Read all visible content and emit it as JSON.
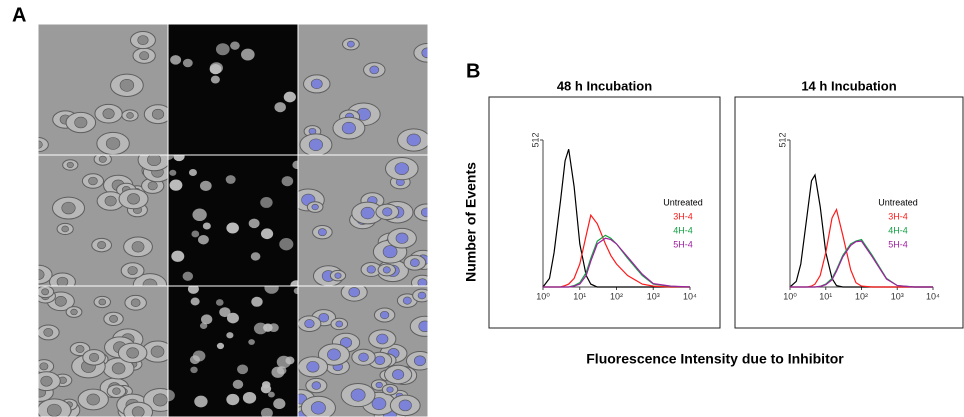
{
  "figure": {
    "panel_a": "A",
    "panel_b": "B",
    "y_label": "Number of Events",
    "x_label": "Fluorescence Intensity due to Inhibitor"
  },
  "chart_data": [
    {
      "type": "line",
      "title": "48 h Incubation",
      "log_x": true,
      "x": [
        1,
        1.5,
        2,
        3,
        4,
        5,
        7,
        10,
        15,
        20,
        30,
        50,
        70,
        100,
        200,
        500,
        1000,
        3000,
        10000
      ],
      "xlim": [
        1,
        10000
      ],
      "xticks": [
        {
          "value": 1,
          "label": "10⁰"
        },
        {
          "value": 10,
          "label": "10¹"
        },
        {
          "value": 100,
          "label": "10²"
        },
        {
          "value": 1000,
          "label": "10³"
        },
        {
          "value": 10000,
          "label": "10⁴"
        }
      ],
      "ylim": [
        0,
        512
      ],
      "yticks": [
        512
      ],
      "series": [
        {
          "name": "Untreated",
          "color": "#000000",
          "values": [
            0,
            30,
            120,
            300,
            440,
            480,
            350,
            150,
            40,
            10,
            0,
            0,
            0,
            0,
            0,
            0,
            0,
            0,
            0
          ]
        },
        {
          "name": "3H-4",
          "color": "#ff1a1a",
          "values": [
            0,
            0,
            0,
            0,
            5,
            10,
            30,
            80,
            180,
            250,
            220,
            150,
            110,
            80,
            40,
            10,
            3,
            0,
            0
          ]
        },
        {
          "name": "4H-4",
          "color": "#10a040",
          "values": [
            0,
            0,
            0,
            0,
            0,
            0,
            5,
            15,
            50,
            100,
            160,
            180,
            170,
            150,
            100,
            40,
            10,
            2,
            0
          ]
        },
        {
          "name": "5H-4",
          "color": "#a020a0",
          "values": [
            0,
            0,
            0,
            0,
            0,
            0,
            3,
            10,
            40,
            90,
            150,
            170,
            165,
            150,
            105,
            45,
            12,
            3,
            0
          ]
        }
      ]
    },
    {
      "type": "line",
      "title": "14 h Incubation",
      "log_x": true,
      "x": [
        1,
        1.5,
        2,
        3,
        4,
        5,
        7,
        10,
        15,
        20,
        30,
        50,
        70,
        100,
        200,
        500,
        1000,
        3000,
        10000
      ],
      "xlim": [
        1,
        10000
      ],
      "xticks": [
        {
          "value": 1,
          "label": "10⁰"
        },
        {
          "value": 10,
          "label": "10¹"
        },
        {
          "value": 100,
          "label": "10²"
        },
        {
          "value": 1000,
          "label": "10³"
        },
        {
          "value": 10000,
          "label": "10⁴"
        }
      ],
      "ylim": [
        0,
        512
      ],
      "yticks": [
        512
      ],
      "series": [
        {
          "name": "Untreated",
          "color": "#000000",
          "values": [
            0,
            20,
            80,
            250,
            370,
            390,
            280,
            120,
            30,
            5,
            0,
            0,
            0,
            0,
            0,
            0,
            0,
            0,
            0
          ]
        },
        {
          "name": "3H-4",
          "color": "#ff1a1a",
          "values": [
            0,
            0,
            0,
            0,
            3,
            10,
            40,
            120,
            240,
            270,
            180,
            60,
            15,
            3,
            0,
            0,
            0,
            0,
            0
          ]
        },
        {
          "name": "4H-4",
          "color": "#10a040",
          "values": [
            0,
            0,
            0,
            0,
            0,
            0,
            2,
            10,
            30,
            60,
            110,
            150,
            160,
            165,
            110,
            30,
            5,
            0,
            0
          ]
        },
        {
          "name": "5H-4",
          "color": "#a020a0",
          "values": [
            0,
            0,
            0,
            0,
            0,
            0,
            2,
            8,
            25,
            55,
            105,
            145,
            158,
            160,
            105,
            28,
            5,
            0,
            0
          ]
        }
      ]
    }
  ]
}
